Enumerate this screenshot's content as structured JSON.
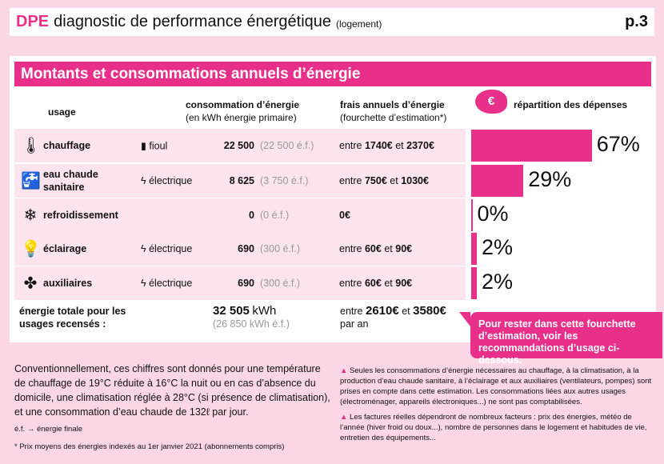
{
  "header": {
    "brand": "DPE",
    "title": "diagnostic de performance énergétique",
    "subtitle": "(logement)",
    "page": "p.3"
  },
  "section_title": "Montants et consommations annuels d’énergie",
  "columns": {
    "usage": "usage",
    "conso": "consommation d’énergie",
    "conso_sub": "(en kWh énergie primaire)",
    "frais": "frais annuels d’énergie",
    "frais_sub": "(fourchette d’estimation*)",
    "repartition": "répartition des dépenses"
  },
  "rows": [
    {
      "icon": "thermometer-icon",
      "usage": "chauffage",
      "energy_icon": "oil-barrel-icon",
      "energy": "fioul",
      "kwh": "22 500",
      "ef": "(22 500 é.f.)",
      "frais_pre": "entre",
      "min": "1740€",
      "mid": "et",
      "max": "2370€",
      "percent": 67,
      "percent_label": "67%"
    },
    {
      "icon": "faucet-icon",
      "usage": "eau chaude sanitaire",
      "energy_icon": "lightning-icon",
      "energy": "électrique",
      "kwh": "8 625",
      "ef": "(3 750 é.f.)",
      "frais_pre": "entre",
      "min": "750€",
      "mid": "et",
      "max": "1030€",
      "percent": 29,
      "percent_label": "29%"
    },
    {
      "icon": "snowflake-icon",
      "usage": "refroidissement",
      "energy_icon": "",
      "energy": "",
      "kwh": "0",
      "ef": "(0 é.f.)",
      "frais_pre": "",
      "min": "0€",
      "mid": "",
      "max": "",
      "percent": 0,
      "percent_label": "0%"
    },
    {
      "icon": "lightbulb-icon",
      "usage": "éclairage",
      "energy_icon": "lightning-icon",
      "energy": "électrique",
      "kwh": "690",
      "ef": "(300 é.f.)",
      "frais_pre": "entre",
      "min": "60€",
      "mid": "et",
      "max": "90€",
      "percent": 2,
      "percent_label": "2%"
    },
    {
      "icon": "fan-icon",
      "usage": "auxiliaires",
      "energy_icon": "lightning-icon",
      "energy": "électrique",
      "kwh": "690",
      "ef": "(300 é.f.)",
      "frais_pre": "entre",
      "min": "60€",
      "mid": "et",
      "max": "90€",
      "percent": 2,
      "percent_label": "2%"
    }
  ],
  "total": {
    "label": "énergie totale pour les usages recensés :",
    "kwh": "32 505",
    "unit": "kWh",
    "ef": "(26 850 kWh é.f.)",
    "pre": "entre",
    "min": "2610€",
    "mid": "et",
    "max": "3580€",
    "per": "par an"
  },
  "callout": "Pour rester dans cette fourchette d’estimation, voir les recommandations d’usage ci-dessous.",
  "notes": {
    "main": "Conventionnellement, ces chiffres sont donnés pour une température de chauffage de 19°C réduite à 16°C la nuit ou en cas d’absence du domicile, une climatisation réglée à 28°C (si présence de climatisation), et une consommation d’eau chaude de 132ℓ par jour.",
    "ef": "é.f. → énergie finale",
    "prix": "* Prix moyens des énergies indexés au 1er janvier 2021 (abonnements compris)"
  },
  "warnings": [
    "Seules les consommations d’énergie nécessaires au chauffage, à la climatisation, à la production d’eau chaude sanitaire, à l’éclairage et aux auxiliaires (ventilateurs, pompes) sont prises en compte dans cette estimation.  Les consommations liées aux autres usages (électroménager, appareils électroniques...) ne sont pas comptabilisées.",
    "Les factures réelles dépendront de nombreux facteurs : prix des énergies, météo de l’année (hiver froid ou doux...), nombre de personnes dans le logement et habitudes de vie, entretien des équipements..."
  ],
  "colors": {
    "accent": "#e8308a",
    "row_bg": "#fce4ef",
    "page_bg": "#fad6e7"
  }
}
